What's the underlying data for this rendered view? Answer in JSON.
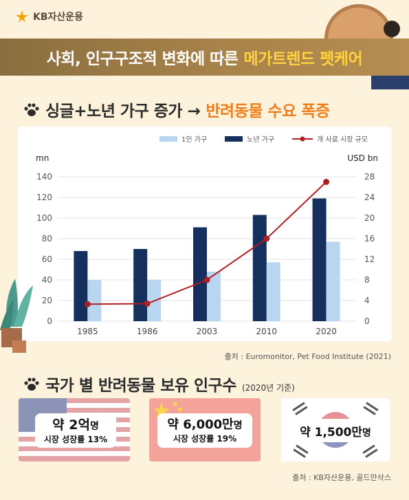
{
  "brand": {
    "name": "KB자산운용",
    "logo_color": "#f5a300"
  },
  "banner": {
    "text": "사회, 인구구조적 변화에 따른",
    "accent": "메가트렌드 펫케어"
  },
  "section1": {
    "title": "싱글+노년 가구 증가 →",
    "accent": "반려동물 수요 폭증"
  },
  "chart_data": {
    "type": "bar",
    "categories": [
      "1985",
      "1986",
      "2003",
      "2010",
      "2020"
    ],
    "series": [
      {
        "name": "1인 가구",
        "kind": "bar",
        "axis": "left",
        "color": "#b9d6f0",
        "values": [
          40,
          40,
          48,
          57,
          77
        ]
      },
      {
        "name": "노년 가구",
        "kind": "bar",
        "axis": "left",
        "color": "#15305c",
        "values": [
          68,
          70,
          91,
          103,
          119
        ]
      },
      {
        "name": "개 사료 시장 규모",
        "kind": "line",
        "axis": "right",
        "color": "#b01e23",
        "values": [
          3.3,
          3.4,
          8,
          16,
          27
        ]
      }
    ],
    "ylabel_left": "mn",
    "ylabel_right": "USD bn",
    "ylim_left": [
      0,
      140
    ],
    "ylim_right": [
      0,
      28
    ],
    "yticks_left": [
      "0",
      "20",
      "40",
      "60",
      "80",
      "100",
      "120",
      "140"
    ],
    "yticks_right": [
      "0",
      "4",
      "8",
      "12",
      "16",
      "20",
      "24",
      "28"
    ],
    "grid": true,
    "legend_position": "top"
  },
  "source1": "출처 : Euromonitor, Pet Food Institute (2021)",
  "section2": {
    "title": "국가 별 반려동물 보유 인구수",
    "note": "(2020년 기준)"
  },
  "countries": [
    {
      "flag": "us-flag",
      "big_num": "약 2억",
      "unit": "명",
      "sub": "시장 성장률 13%"
    },
    {
      "flag": "china-flag",
      "big_num": "약 6,000만",
      "unit": "명",
      "sub": "시장 성장률 19%"
    },
    {
      "flag": "korea-flag",
      "big_num": "약 1,500만",
      "unit": "명",
      "sub": ""
    }
  ],
  "source2": "출처 : KB자산운용, 골드만삭스"
}
